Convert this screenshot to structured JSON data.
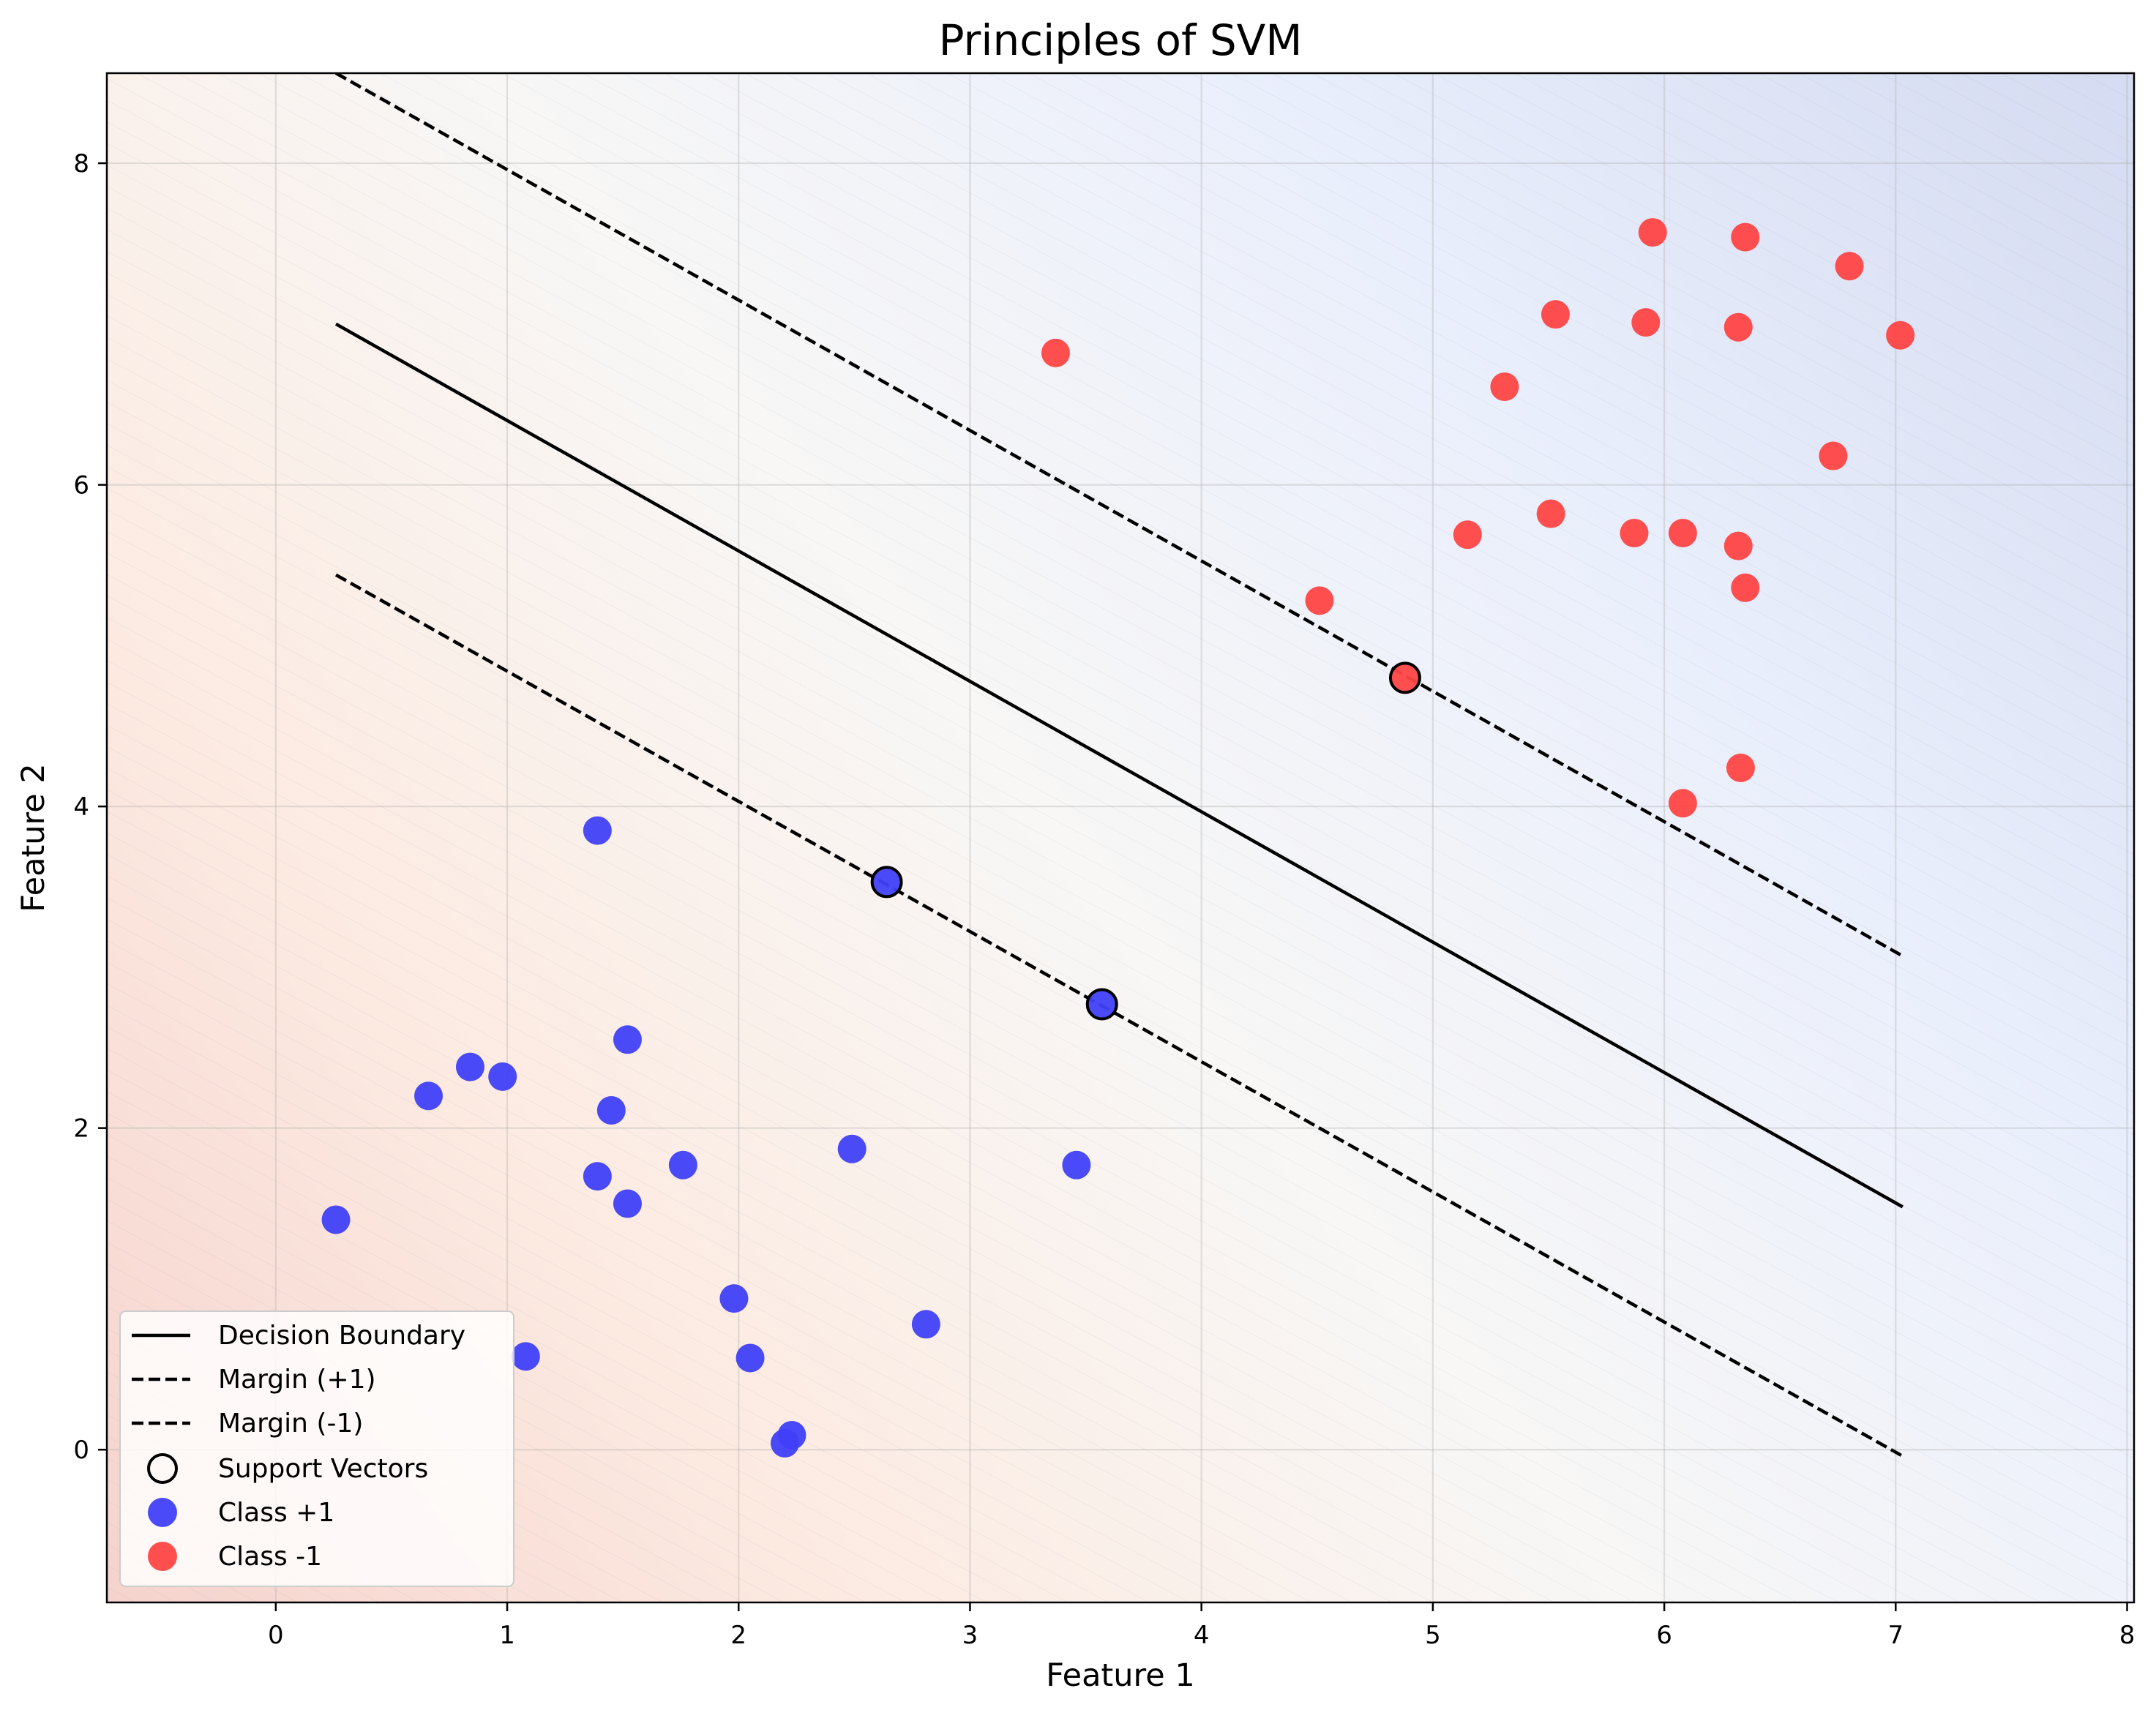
{
  "chart_data": {
    "type": "scatter",
    "title": "Principles of SVM",
    "xlabel": "Feature 1",
    "ylabel": "Feature 2",
    "xlim": [
      -0.73,
      8.03
    ],
    "ylim": [
      -0.95,
      8.56
    ],
    "xticks": [
      0,
      1,
      2,
      3,
      4,
      5,
      6,
      7,
      8
    ],
    "yticks": [
      0,
      2,
      4,
      6,
      8
    ],
    "grid": true,
    "legend_position": "lower-left",
    "lines": [
      {
        "name": "Decision Boundary",
        "style": "solid",
        "x": [
          0.26,
          7.03
        ],
        "y": [
          7.0,
          1.51
        ]
      },
      {
        "name": "Margin (+1)",
        "style": "dashed",
        "x": [
          0.26,
          7.03
        ],
        "y": [
          8.56,
          3.07
        ]
      },
      {
        "name": "Margin (-1)",
        "style": "dashed",
        "x": [
          0.26,
          7.03
        ],
        "y": [
          5.44,
          -0.04
        ]
      }
    ],
    "series": [
      {
        "name": "Class +1",
        "color": "#4040f8",
        "points": [
          [
            1.39,
            3.85
          ],
          [
            0.66,
            2.2
          ],
          [
            0.84,
            2.38
          ],
          [
            0.98,
            2.32
          ],
          [
            1.52,
            2.55
          ],
          [
            1.45,
            2.11
          ],
          [
            1.39,
            1.7
          ],
          [
            1.52,
            1.53
          ],
          [
            1.76,
            1.77
          ],
          [
            2.49,
            1.87
          ],
          [
            3.46,
            1.77
          ],
          [
            0.26,
            1.43
          ],
          [
            1.98,
            0.94
          ],
          [
            2.81,
            0.78
          ],
          [
            2.05,
            0.57
          ],
          [
            1.08,
            0.58
          ],
          [
            2.23,
            0.09
          ],
          [
            2.2,
            0.04
          ],
          [
            2.64,
            3.53
          ],
          [
            3.57,
            2.77
          ]
        ]
      },
      {
        "name": "Class -1",
        "color": "#ff4545",
        "points": [
          [
            5.95,
            7.57
          ],
          [
            6.35,
            7.54
          ],
          [
            6.8,
            7.36
          ],
          [
            5.53,
            7.06
          ],
          [
            5.92,
            7.01
          ],
          [
            6.32,
            6.98
          ],
          [
            7.02,
            6.93
          ],
          [
            3.37,
            6.82
          ],
          [
            5.31,
            6.61
          ],
          [
            6.73,
            6.18
          ],
          [
            5.15,
            5.69
          ],
          [
            5.51,
            5.82
          ],
          [
            5.87,
            5.7
          ],
          [
            6.08,
            5.7
          ],
          [
            6.32,
            5.62
          ],
          [
            6.35,
            5.36
          ],
          [
            4.51,
            5.28
          ],
          [
            6.33,
            4.24
          ],
          [
            6.08,
            4.02
          ],
          [
            4.88,
            4.8
          ]
        ]
      }
    ],
    "support_vectors": [
      [
        2.64,
        3.53
      ],
      [
        3.57,
        2.77
      ],
      [
        4.88,
        4.8
      ]
    ],
    "legend": [
      "Decision Boundary",
      "Margin (+1)",
      "Margin (-1)",
      "Support Vectors",
      "Class +1",
      "Class -1"
    ],
    "colors": {
      "class_pos": "#4040f8",
      "class_neg": "#ff4545",
      "bg_blue": "#d5dcf2",
      "bg_red": "#f6d6d2"
    }
  }
}
